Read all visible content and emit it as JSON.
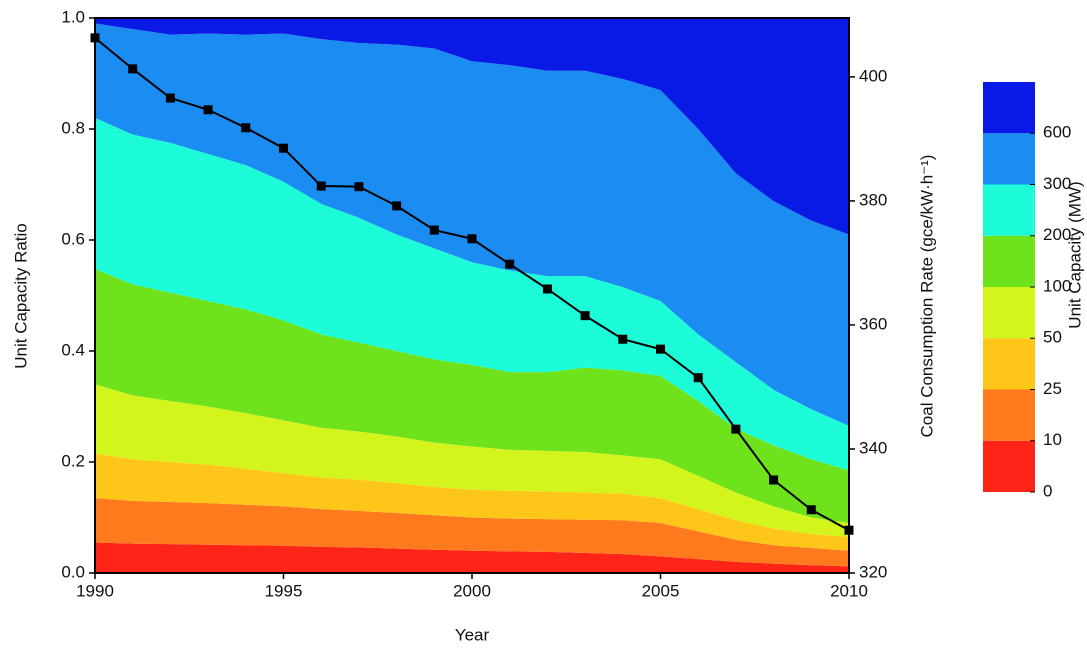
{
  "chart_data": {
    "type": "stacked_area",
    "x_label": "Year",
    "y_label": "Unit Capacity Ratio",
    "y2_label": "Coal Consumption Rate (gce/kW·h⁻¹)",
    "legend_title": "Unit Capacity (MW)",
    "legend_position": "right",
    "x": [
      1990,
      1991,
      1992,
      1993,
      1994,
      1995,
      1996,
      1997,
      1998,
      1999,
      2000,
      2001,
      2002,
      2003,
      2004,
      2005,
      2006,
      2007,
      2008,
      2009,
      2010
    ],
    "xlim": [
      1990,
      2010
    ],
    "xticks": [
      1990,
      1995,
      2000,
      2005,
      2010
    ],
    "ylim": [
      0,
      1
    ],
    "yticks": [
      {
        "value": 0,
        "label": "0.0"
      },
      0.2,
      0.4,
      0.6,
      0.8,
      {
        "value": 1,
        "label": "1.0"
      }
    ],
    "y2lim": [
      320,
      409.5
    ],
    "y2ticks": [
      320,
      340,
      360,
      380,
      400
    ],
    "series": [
      {
        "name": "0",
        "color": "#ff2418",
        "values": [
          0.055,
          0.053,
          0.052,
          0.051,
          0.05,
          0.049,
          0.047,
          0.046,
          0.044,
          0.042,
          0.04,
          0.039,
          0.038,
          0.036,
          0.034,
          0.03,
          0.025,
          0.02,
          0.017,
          0.014,
          0.012
        ]
      },
      {
        "name": "10",
        "color": "#ff7a1c",
        "values": [
          0.08,
          0.077,
          0.076,
          0.075,
          0.073,
          0.071,
          0.068,
          0.066,
          0.064,
          0.062,
          0.06,
          0.059,
          0.059,
          0.06,
          0.061,
          0.06,
          0.05,
          0.04,
          0.033,
          0.031,
          0.028
        ]
      },
      {
        "name": "25",
        "color": "#ffc61a",
        "values": [
          0.08,
          0.075,
          0.072,
          0.069,
          0.065,
          0.06,
          0.057,
          0.056,
          0.054,
          0.051,
          0.05,
          0.05,
          0.05,
          0.049,
          0.048,
          0.045,
          0.04,
          0.035,
          0.03,
          0.025,
          0.025
        ]
      },
      {
        "name": "50",
        "color": "#d4f51c",
        "values": [
          0.125,
          0.115,
          0.11,
          0.105,
          0.1,
          0.095,
          0.09,
          0.087,
          0.084,
          0.08,
          0.078,
          0.074,
          0.073,
          0.073,
          0.069,
          0.07,
          0.06,
          0.05,
          0.04,
          0.03,
          0.025
        ]
      },
      {
        "name": "100",
        "color": "#6ee21a",
        "values": [
          0.208,
          0.2,
          0.195,
          0.19,
          0.187,
          0.18,
          0.168,
          0.16,
          0.154,
          0.15,
          0.147,
          0.14,
          0.142,
          0.152,
          0.153,
          0.15,
          0.135,
          0.115,
          0.11,
          0.105,
          0.095
        ]
      },
      {
        "name": "200",
        "color": "#1cfcd8",
        "values": [
          0.272,
          0.27,
          0.27,
          0.265,
          0.26,
          0.25,
          0.235,
          0.225,
          0.21,
          0.2,
          0.185,
          0.183,
          0.173,
          0.165,
          0.15,
          0.135,
          0.12,
          0.12,
          0.1,
          0.09,
          0.08
        ]
      },
      {
        "name": "300",
        "color": "#1a8cf2",
        "values": [
          0.17,
          0.19,
          0.195,
          0.217,
          0.235,
          0.267,
          0.297,
          0.315,
          0.342,
          0.36,
          0.362,
          0.37,
          0.37,
          0.37,
          0.375,
          0.38,
          0.37,
          0.34,
          0.34,
          0.34,
          0.345
        ]
      },
      {
        "name": "600",
        "color": "#0a1ae6",
        "values": [
          0.01,
          0.02,
          0.03,
          0.028,
          0.03,
          0.028,
          0.038,
          0.045,
          0.048,
          0.055,
          0.078,
          0.085,
          0.095,
          0.095,
          0.11,
          0.13,
          0.2,
          0.28,
          0.33,
          0.365,
          0.39
        ]
      }
    ],
    "line_series": {
      "axis": "y2",
      "color": "#000000",
      "values": [
        406.3,
        401.3,
        396.6,
        394.7,
        391.8,
        388.5,
        382.4,
        382.3,
        379.2,
        375.3,
        373.9,
        369.8,
        365.8,
        361.5,
        357.7,
        356.1,
        351.5,
        343.2,
        335.0,
        330.2,
        326.9
      ]
    }
  }
}
